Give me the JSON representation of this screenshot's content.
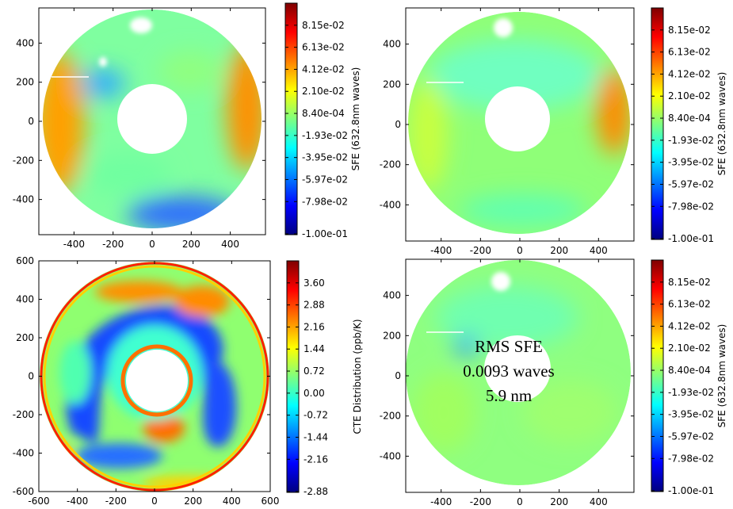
{
  "chart_data": [
    {
      "id": "sfe-measured",
      "type": "heatmap",
      "title": "",
      "xlabel": "",
      "ylabel": "",
      "xlim": [
        -580,
        580
      ],
      "ylim": [
        -580,
        580
      ],
      "xticks": [
        -400,
        -200,
        0,
        200,
        400
      ],
      "yticks": [
        -400,
        -200,
        0,
        200,
        400
      ],
      "aperture": {
        "outer_radius": 550,
        "inner_radius": 175
      },
      "colorbar": {
        "label": "SFE (632.8nm waves)",
        "range": [
          -0.1,
          0.1
        ],
        "ticks": [
          "8.15e-02",
          "6.13e-02",
          "4.12e-02",
          "2.10e-02",
          "8.40e-04",
          "-1.93e-02",
          "-3.95e-02",
          "-5.97e-02",
          "-7.98e-02",
          "-1.00e-01"
        ]
      }
    },
    {
      "id": "sfe-model",
      "type": "heatmap",
      "title": "",
      "xlabel": "",
      "ylabel": "",
      "xlim": [
        -580,
        580
      ],
      "ylim": [
        -580,
        580
      ],
      "xticks": [
        -400,
        -200,
        0,
        200,
        400
      ],
      "yticks": [
        -400,
        -200,
        0,
        200,
        400
      ],
      "aperture": {
        "outer_radius": 550,
        "inner_radius": 175
      },
      "colorbar": {
        "label": "SFE (632.8nm waves)",
        "range": [
          -0.1,
          0.1
        ],
        "ticks": [
          "8.15e-02",
          "6.13e-02",
          "4.12e-02",
          "2.10e-02",
          "8.40e-04",
          "-1.93e-02",
          "-3.95e-02",
          "-5.97e-02",
          "-7.98e-02",
          "-1.00e-01"
        ]
      }
    },
    {
      "id": "cte-distribution",
      "type": "heatmap",
      "title": "",
      "xlabel": "",
      "ylabel": "",
      "xlim": [
        -600,
        600
      ],
      "ylim": [
        -600,
        600
      ],
      "xticks": [
        -600,
        -400,
        -200,
        0,
        200,
        400,
        600
      ],
      "yticks": [
        -600,
        -400,
        -200,
        0,
        200,
        400,
        600
      ],
      "aperture": {
        "outer_radius": 600,
        "inner_radius": 165
      },
      "colorbar": {
        "label": "CTE Distribution (ppb/K)",
        "range": [
          -3.6,
          3.6
        ],
        "ticks": [
          "3.60",
          "2.88",
          "2.16",
          "1.44",
          "0.72",
          "0.00",
          "-0.72",
          "-1.44",
          "-2.16",
          "-2.88"
        ]
      }
    },
    {
      "id": "sfe-residual",
      "type": "heatmap",
      "title": "",
      "xlabel": "",
      "ylabel": "",
      "xlim": [
        -580,
        580
      ],
      "ylim": [
        -580,
        580
      ],
      "xticks": [
        -400,
        -200,
        0,
        200,
        400
      ],
      "yticks": [
        -400,
        -200,
        0,
        200,
        400
      ],
      "aperture": {
        "outer_radius": 550,
        "inner_radius": 175
      },
      "annotation": [
        "RMS SFE",
        "0.0093 waves",
        "5.9 nm"
      ],
      "colorbar": {
        "label": "SFE (632.8nm waves)",
        "range": [
          -0.1,
          0.1
        ],
        "ticks": [
          "8.15e-02",
          "6.13e-02",
          "4.12e-02",
          "2.10e-02",
          "8.40e-04",
          "-1.93e-02",
          "-3.95e-02",
          "-5.97e-02",
          "-7.98e-02",
          "-1.00e-01"
        ]
      }
    }
  ],
  "colors": {
    "jet": [
      "#00007f",
      "#0000ff",
      "#007fff",
      "#00ffff",
      "#7fff7f",
      "#ffff00",
      "#ff7f00",
      "#ff0000",
      "#7f0000"
    ],
    "background": "#ffffff"
  }
}
